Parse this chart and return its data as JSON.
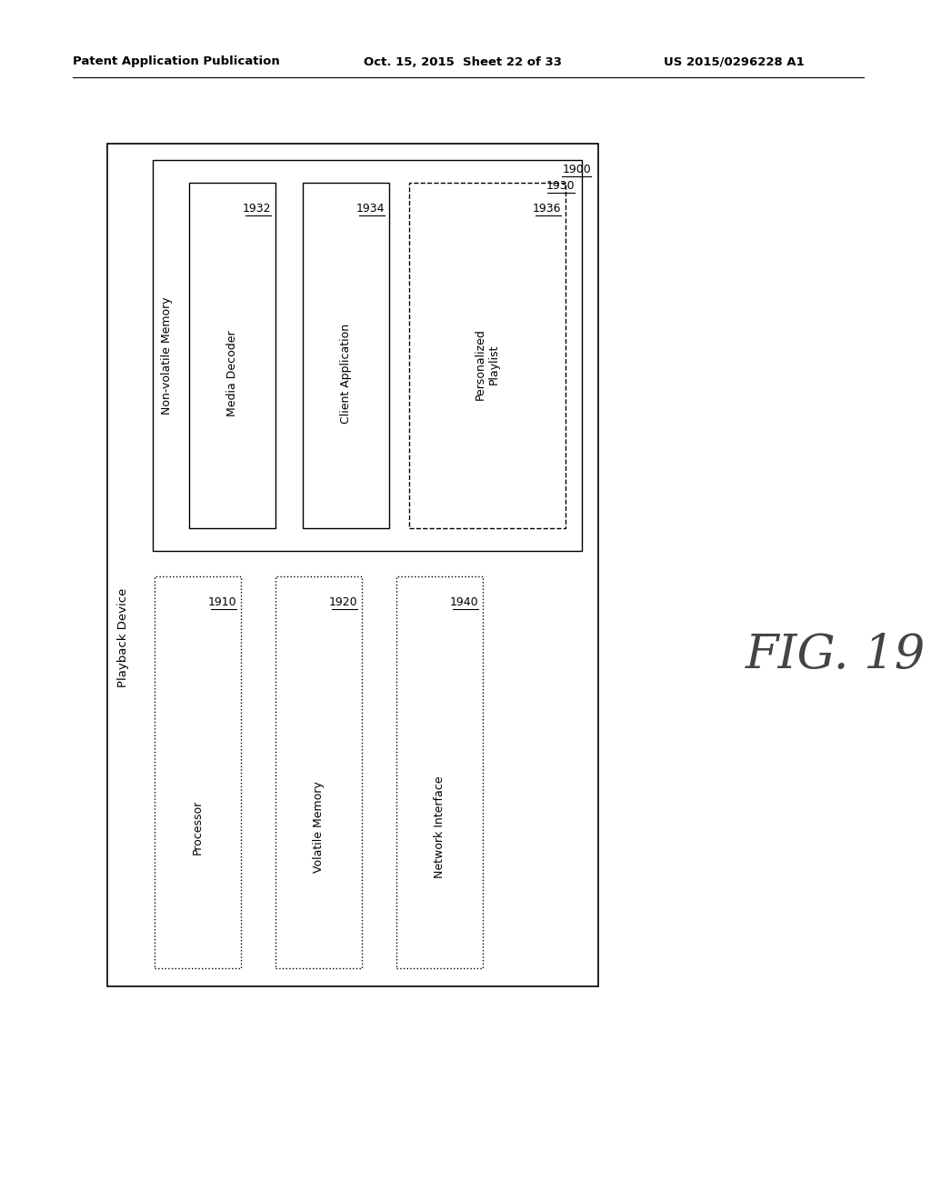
{
  "header_left": "Patent Application Publication",
  "header_mid": "Oct. 15, 2015  Sheet 22 of 33",
  "header_right": "US 2015/0296228 A1",
  "fig_label": "FIG. 19",
  "bg_color": "#ffffff",
  "playback_label": "Playback Device",
  "nonvolatile_label": "Non-volatile Memory",
  "ref_1900": "1900",
  "ref_1930": "1930",
  "ref_1910": "1910",
  "ref_1920": "1920",
  "ref_1940": "1940",
  "ref_1932": "1932",
  "ref_1934": "1934",
  "ref_1936": "1936",
  "box_1932_label": "Media Decoder",
  "box_1934_label": "Client Application",
  "box_1936_label": "Personalized\nPlaylist",
  "box_1910_label": "Processor",
  "box_1920_label": "Volatile Memory",
  "box_1940_label": "Network Interface"
}
